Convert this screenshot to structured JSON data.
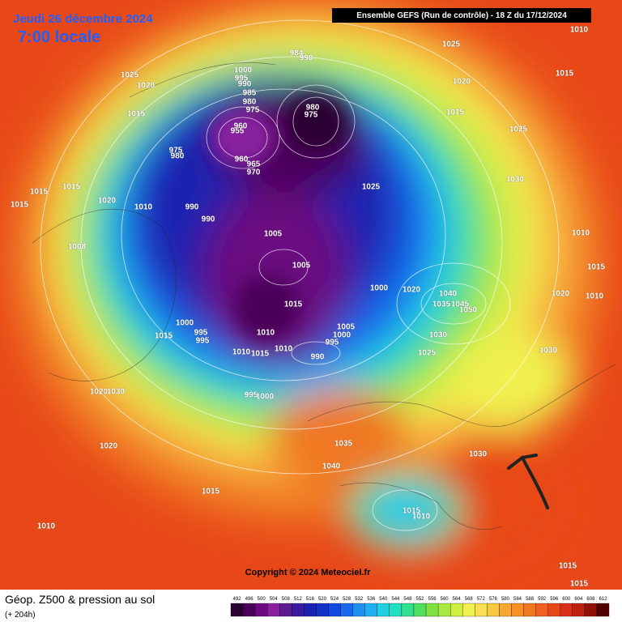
{
  "header": {
    "date": "Jeudi 26 décembre 2024",
    "time": "7:00 locale",
    "run": "Ensemble GEFS  (Run de contrôle)  -  18 Z du 17/12/2024"
  },
  "footer": {
    "title": "Géop. Z500 & pression au sol",
    "lead": "(+ 204h)",
    "copyright": "Copyright © 2024 Meteociel.fr"
  },
  "isobar_labels": [
    "1010",
    "1025",
    "984",
    "990",
    "1025",
    "1020",
    "1000",
    "995",
    "990",
    "1015",
    "1020",
    "985",
    "980",
    "975",
    "980",
    "975",
    "1015",
    "1015",
    "960",
    "955",
    "1025",
    "975",
    "980",
    "960",
    "965",
    "970",
    "1030",
    "1025",
    "1015",
    "1015",
    "1020",
    "1015",
    "1010",
    "990",
    "990",
    "1010",
    "1005",
    "1008",
    "1015",
    "1005",
    "1000",
    "1020",
    "1040",
    "1020",
    "1010",
    "1015",
    "1035",
    "1045",
    "1050",
    "1000",
    "995",
    "1005",
    "1010",
    "1000",
    "1015",
    "995",
    "1030",
    "995",
    "1010",
    "1010",
    "1015",
    "990",
    "1025",
    "1030",
    "1020",
    "1030",
    "995",
    "1000",
    "1020",
    "1035",
    "1030",
    "1040",
    "1015",
    "1015",
    "1010",
    "1010",
    "1015",
    "1015"
  ],
  "colorbar": {
    "ticks": [
      492,
      496,
      500,
      504,
      508,
      512,
      516,
      520,
      524,
      528,
      532,
      536,
      540,
      544,
      548,
      552,
      556,
      560,
      564,
      568,
      572,
      576,
      580,
      584,
      588,
      592,
      596,
      600,
      604,
      608,
      612
    ],
    "colors": [
      "#2a0030",
      "#4a0058",
      "#6a0a80",
      "#8a20a0",
      "#5a1a90",
      "#3a1aa0",
      "#1a20b0",
      "#1030c8",
      "#1048e0",
      "#1868f0",
      "#2090f0",
      "#20b0f0",
      "#20d0e0",
      "#20e0c0",
      "#30e090",
      "#50e060",
      "#80e040",
      "#a8e840",
      "#d0f040",
      "#f0f050",
      "#f8e050",
      "#f8c840",
      "#f8a830",
      "#f89028",
      "#f07820",
      "#f06020",
      "#e84818",
      "#d83018",
      "#c02010",
      "#901008",
      "#500000"
    ]
  }
}
